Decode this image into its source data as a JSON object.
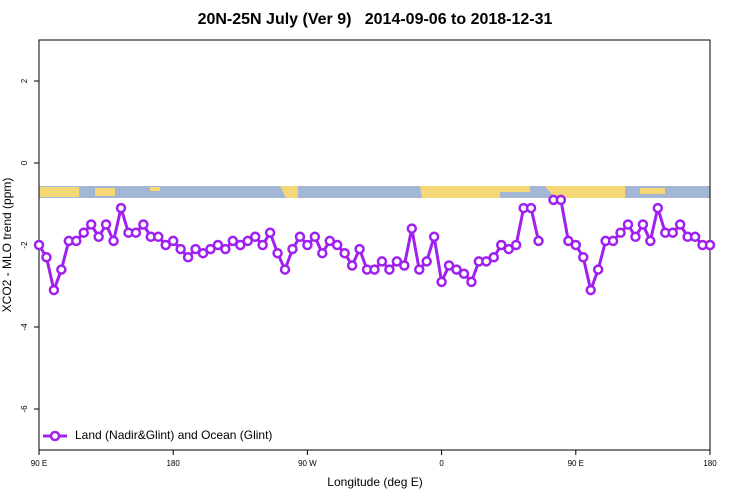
{
  "chart_data": {
    "type": "line",
    "title": "20N-25N July (Ver 9)   2014-09-06 to 2018-12-31",
    "xlabel": "Longitude (deg E)",
    "ylabel": "XCO2 - MLO trend (ppm)",
    "x": [
      90,
      95,
      100,
      105,
      110,
      115,
      120,
      125,
      130,
      135,
      140,
      145,
      150,
      155,
      160,
      165,
      170,
      175,
      180,
      185,
      190,
      195,
      200,
      205,
      210,
      215,
      220,
      225,
      230,
      235,
      240,
      245,
      250,
      255,
      260,
      265,
      270,
      275,
      280,
      285,
      290,
      295,
      300,
      305,
      310,
      315,
      320,
      325,
      330,
      335,
      340,
      345,
      350,
      355,
      360,
      365,
      370,
      375,
      380,
      385,
      390,
      395,
      400,
      405,
      410,
      415,
      420,
      425,
      430,
      435,
      440,
      445,
      450,
      455,
      460,
      465,
      470,
      475,
      480,
      485,
      490,
      495,
      500,
      505,
      510,
      515,
      520,
      525,
      530,
      535,
      540
    ],
    "series": [
      {
        "name": "Land (Nadir&Glint) and Ocean (Glint)",
        "color": "#a020f0",
        "values": [
          -2.0,
          -2.3,
          -3.1,
          -2.6,
          -1.9,
          -1.9,
          -1.7,
          -1.5,
          -1.8,
          -1.5,
          -1.9,
          -1.1,
          -1.7,
          -1.7,
          -1.5,
          -1.8,
          -1.8,
          -2.0,
          -1.9,
          -2.1,
          -2.3,
          -2.1,
          -2.2,
          -2.1,
          -2.0,
          -2.1,
          -1.9,
          -2.0,
          -1.9,
          -1.8,
          -2.0,
          -1.7,
          -2.2,
          -2.6,
          -2.1,
          -1.8,
          -2.0,
          -1.8,
          -2.2,
          -1.9,
          -2.0,
          -2.2,
          -2.5,
          -2.1,
          -2.6,
          -2.6,
          -2.4,
          -2.6,
          -2.4,
          -2.5,
          -1.6,
          -2.6,
          -2.4,
          -1.8,
          -2.9,
          -2.5,
          -2.6,
          -2.7,
          -2.9,
          -2.4,
          -2.4,
          -2.3,
          -2.0,
          -2.1,
          -2.0,
          -1.1,
          -1.1,
          -1.9,
          null,
          -0.9,
          -0.9,
          -1.9,
          -2.0,
          -2.3,
          -3.1,
          -2.6,
          -1.9,
          -1.9,
          -1.7,
          -1.5,
          -1.8,
          -1.5,
          -1.9,
          -1.1,
          -1.7,
          -1.7,
          -1.5,
          -1.8,
          -1.8,
          -2.0,
          -2.0
        ]
      }
    ],
    "xlim": [
      90,
      540
    ],
    "xticks": [
      {
        "value": 90,
        "label": "90 E"
      },
      180,
      {
        "value": 270,
        "label": "90 W"
      },
      {
        "value": 360,
        "label": "0"
      },
      {
        "value": 450,
        "label": "90 E"
      },
      {
        "value": 540,
        "label": "180"
      }
    ],
    "ylim": [
      -7,
      3
    ],
    "yticks": [
      -6,
      -4,
      -2,
      0,
      2
    ],
    "legend": "bottom-left"
  }
}
